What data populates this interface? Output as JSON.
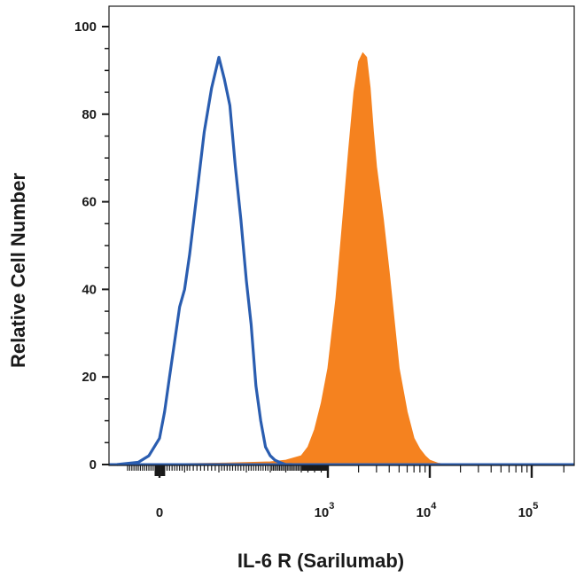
{
  "chart_data": {
    "type": "area",
    "xlabel": "IL-6 R (Sarilumab)",
    "ylabel": "Relative Cell Number",
    "x_scale": "biexponential",
    "xlim": [
      -200,
      250000
    ],
    "ylim": [
      0,
      100
    ],
    "y_ticks": [
      {
        "value": 0,
        "label": "0"
      },
      {
        "value": 20,
        "label": "20"
      },
      {
        "value": 40,
        "label": "40"
      },
      {
        "value": 60,
        "label": "60"
      },
      {
        "value": 80,
        "label": "80"
      },
      {
        "value": 100,
        "label": "100"
      }
    ],
    "x_ticks": [
      {
        "value": 0,
        "base": "0",
        "exp": ""
      },
      {
        "value": 1000,
        "base": "10",
        "exp": "3"
      },
      {
        "value": 10000,
        "base": "10",
        "exp": "4"
      },
      {
        "value": 100000,
        "base": "10",
        "exp": "5"
      }
    ],
    "grid": false,
    "series": [
      {
        "style": "outline",
        "color": "#2a5db0",
        "x": [
          -200,
          -100,
          -50,
          0,
          20,
          40,
          60,
          80,
          100,
          120,
          140,
          160,
          180,
          200,
          220,
          240,
          260,
          280,
          300,
          320,
          340,
          360,
          380,
          400,
          430,
          460,
          500,
          540
        ],
        "y": [
          0,
          0.5,
          2,
          6,
          12,
          20,
          28,
          36,
          40,
          48,
          62,
          76,
          86,
          93,
          88,
          82,
          68,
          56,
          42,
          32,
          18,
          10,
          4,
          2,
          1,
          0.5,
          0,
          0
        ]
      },
      {
        "style": "filled",
        "color": "#f5821f",
        "x": [
          -200,
          200,
          400,
          500,
          600,
          700,
          800,
          900,
          1000,
          1200,
          1400,
          1600,
          1800,
          2000,
          2200,
          2400,
          2600,
          2800,
          3000,
          3500,
          4000,
          5000,
          6000,
          7000,
          8000,
          9000,
          10000,
          12000,
          15000
        ],
        "y": [
          0,
          0.3,
          0.6,
          1,
          2,
          4,
          8,
          14,
          22,
          38,
          56,
          72,
          85,
          92,
          94,
          93,
          86,
          76,
          68,
          56,
          44,
          22,
          12,
          6,
          3.5,
          2,
          1,
          0.3,
          0
        ]
      }
    ]
  }
}
